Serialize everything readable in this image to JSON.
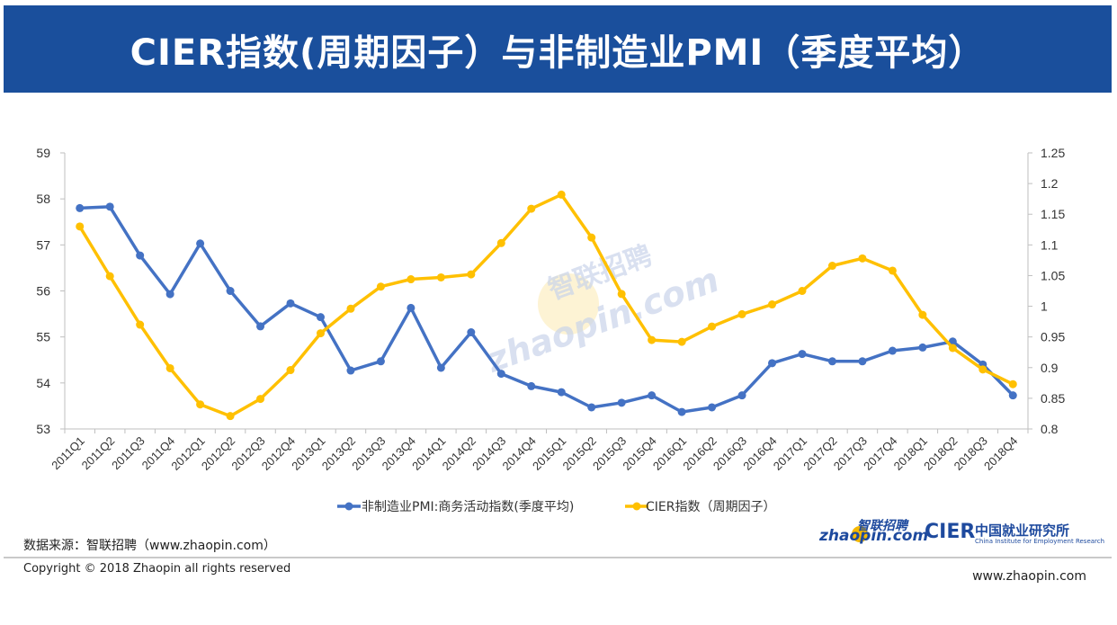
{
  "header": {
    "title": "CIER指数(周期因子）与非制造业PMI（季度平均）"
  },
  "watermark": {
    "cn": "智联招聘",
    "en": "zhaopin.com"
  },
  "footer": {
    "source": "数据来源：智联招聘（www.zhaopin.com）",
    "copyright": "Copyright © 2018 Zhaopin all rights reserved",
    "website": "www.zhaopin.com",
    "logo_zhaopin_cn": "智联招聘",
    "logo_zhaopin_en": "zhaopin.com",
    "logo_cier_mark": "CIER",
    "logo_cier_cn": "中国就业研究所",
    "logo_cier_en": "China Institute for Employment Research"
  },
  "colors": {
    "header_bg": "#1a4f9c",
    "pmi": "#4472c4",
    "cier": "#ffc000"
  },
  "chart_data": {
    "type": "line",
    "title": "",
    "x": [
      "2011Q1",
      "2011Q2",
      "2011Q3",
      "2011Q4",
      "2012Q1",
      "2012Q2",
      "2012Q3",
      "2012Q4",
      "2013Q1",
      "2013Q2",
      "2013Q3",
      "2013Q4",
      "2014Q1",
      "2014Q2",
      "2014Q3",
      "2014Q4",
      "2015Q1",
      "2015Q2",
      "2015Q3",
      "2015Q4",
      "2016Q1",
      "2016Q2",
      "2016Q3",
      "2016Q4",
      "2017Q1",
      "2017Q2",
      "2017Q3",
      "2017Q4",
      "2018Q1",
      "2018Q2",
      "2018Q3",
      "2018Q4"
    ],
    "y_left": {
      "min": 53,
      "max": 59,
      "ticks": [
        "53",
        "54",
        "55",
        "56",
        "57",
        "58",
        "59"
      ]
    },
    "y_right": {
      "min": 0.8,
      "max": 1.25,
      "ticks": [
        "0.8",
        "0.85",
        "0.9",
        "0.95",
        "1",
        "1.05",
        "1.1",
        "1.15",
        "1.2",
        "1.25"
      ]
    },
    "legend_position": "bottom",
    "series": [
      {
        "name": "非制造业PMI:商务活动指数(季度平均)",
        "axis": "left",
        "color": "#4472c4",
        "values": [
          57.8,
          57.83,
          56.77,
          55.93,
          57.03,
          56.0,
          55.23,
          55.73,
          55.43,
          54.27,
          54.47,
          55.63,
          54.33,
          55.1,
          54.2,
          53.93,
          53.8,
          53.47,
          53.57,
          53.73,
          53.37,
          53.47,
          53.73,
          54.43,
          54.63,
          54.47,
          54.47,
          54.7,
          54.77,
          54.9,
          54.4,
          53.73
        ]
      },
      {
        "name": "CIER指数（周期因子）",
        "axis": "right",
        "color": "#ffc000",
        "values": [
          1.13,
          1.049,
          0.97,
          0.899,
          0.84,
          0.821,
          0.849,
          0.896,
          0.956,
          0.996,
          1.032,
          1.044,
          1.047,
          1.052,
          1.103,
          1.159,
          1.182,
          1.112,
          1.02,
          0.945,
          0.942,
          0.967,
          0.987,
          1.003,
          1.025,
          1.066,
          1.078,
          1.058,
          0.986,
          0.932,
          0.897,
          0.873
        ]
      }
    ]
  }
}
